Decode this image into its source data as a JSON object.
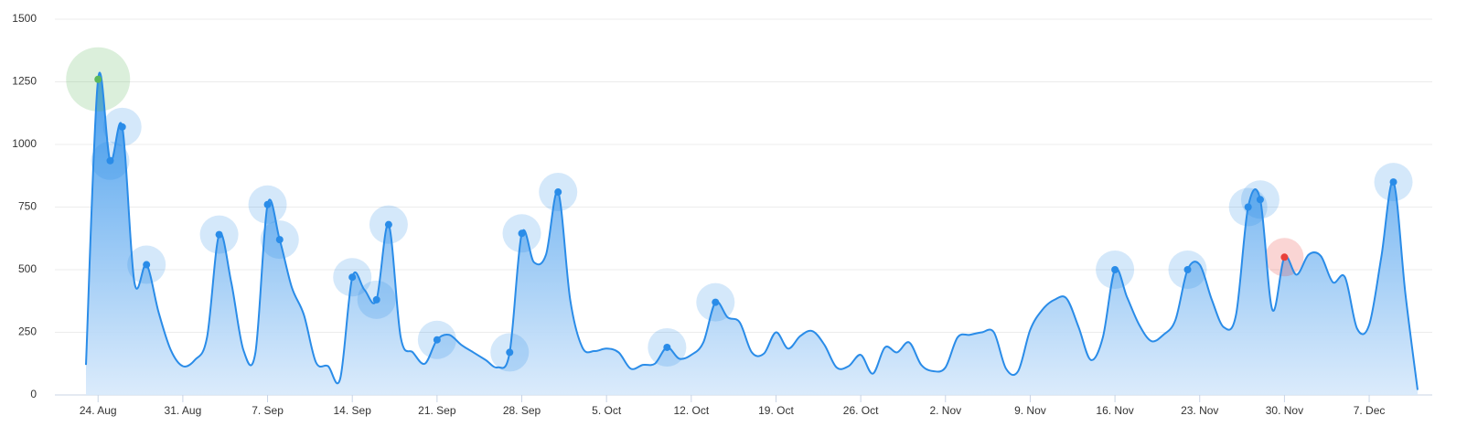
{
  "chart_data": {
    "type": "area",
    "categories": [
      null,
      "24. Aug",
      null,
      null,
      null,
      null,
      null,
      null,
      "31. Aug",
      null,
      null,
      null,
      null,
      null,
      null,
      "7. Sep",
      null,
      null,
      null,
      null,
      null,
      null,
      "14. Sep",
      null,
      null,
      null,
      null,
      null,
      null,
      "21. Sep",
      null,
      null,
      null,
      null,
      null,
      null,
      "28. Sep",
      null,
      null,
      null,
      null,
      null,
      null,
      "5. Oct",
      null,
      null,
      null,
      null,
      null,
      null,
      "12. Oct",
      null,
      null,
      null,
      null,
      null,
      null,
      "19. Oct",
      null,
      null,
      null,
      null,
      null,
      null,
      "26. Oct",
      null,
      null,
      null,
      null,
      null,
      null,
      "2. Nov",
      null,
      null,
      null,
      null,
      null,
      null,
      "9. Nov",
      null,
      null,
      null,
      null,
      null,
      null,
      "16. Nov",
      null,
      null,
      null,
      null,
      null,
      null,
      "23. Nov",
      null,
      null,
      null,
      null,
      null,
      null,
      "30. Nov",
      null,
      null,
      null,
      null,
      null,
      null,
      "7. Dec",
      null,
      null,
      null,
      null
    ],
    "series": [
      {
        "color": "#2a8ce8",
        "values": [
          120,
          1260,
          935,
          1070,
          450,
          520,
          330,
          180,
          115,
          140,
          230,
          640,
          450,
          180,
          170,
          760,
          620,
          430,
          320,
          130,
          115,
          65,
          470,
          420,
          380,
          680,
          230,
          170,
          125,
          220,
          240,
          200,
          170,
          140,
          110,
          170,
          645,
          530,
          560,
          810,
          380,
          190,
          175,
          185,
          170,
          105,
          120,
          125,
          190,
          145,
          160,
          210,
          370,
          310,
          290,
          170,
          165,
          250,
          185,
          235,
          255,
          200,
          110,
          115,
          160,
          85,
          190,
          170,
          210,
          120,
          95,
          110,
          230,
          240,
          250,
          250,
          105,
          95,
          260,
          340,
          380,
          385,
          270,
          140,
          230,
          500,
          390,
          280,
          215,
          240,
          300,
          500,
          520,
          380,
          270,
          320,
          750,
          780,
          340,
          550,
          480,
          560,
          555,
          450,
          470,
          265,
          280,
          550,
          850,
          400,
          20
        ]
      },
      {
        "color": "#2a8ce8",
        "values": [
          null,
          null,
          935,
          1070,
          null,
          520,
          null,
          null,
          null,
          null,
          null,
          640,
          null,
          null,
          null,
          760,
          620,
          null,
          null,
          null,
          null,
          null,
          470,
          null,
          380,
          680,
          null,
          null,
          null,
          220,
          null,
          null,
          null,
          null,
          null,
          170,
          645,
          null,
          null,
          810,
          null,
          null,
          null,
          null,
          null,
          null,
          null,
          null,
          190,
          null,
          null,
          null,
          370,
          null,
          null,
          null,
          null,
          null,
          null,
          null,
          null,
          null,
          null,
          null,
          null,
          null,
          null,
          null,
          null,
          null,
          null,
          null,
          null,
          null,
          null,
          null,
          null,
          null,
          null,
          null,
          null,
          null,
          null,
          null,
          null,
          500,
          null,
          null,
          null,
          null,
          null,
          500,
          null,
          null,
          null,
          null,
          750,
          780,
          null,
          null,
          null,
          null,
          null,
          null,
          null,
          null,
          null,
          null,
          850,
          null,
          null
        ]
      },
      {
        "color": "#5cb85c",
        "values": [
          null,
          1260,
          null,
          null,
          null,
          null,
          null,
          null,
          null,
          null,
          null,
          null,
          null,
          null,
          null,
          null,
          null,
          null,
          null,
          null,
          null,
          null,
          null,
          null,
          null,
          null,
          null,
          null,
          null,
          null,
          null,
          null,
          null,
          null,
          null,
          null,
          null,
          null,
          null,
          null,
          null,
          null,
          null,
          null,
          null,
          null,
          null,
          null,
          null,
          null,
          null,
          null,
          null,
          null,
          null,
          null,
          null,
          null,
          null,
          null,
          null,
          null,
          null,
          null,
          null,
          null,
          null,
          null,
          null,
          null,
          null,
          null,
          null,
          null,
          null,
          null,
          null,
          null,
          null,
          null,
          null,
          null,
          null,
          null,
          null,
          null,
          null,
          null,
          null,
          null,
          null,
          null,
          null,
          null,
          null,
          null,
          null,
          null,
          null,
          null,
          null,
          null,
          null,
          null,
          null,
          null,
          null,
          null,
          null,
          null,
          null
        ]
      },
      {
        "color": "#e8413a",
        "values": [
          null,
          null,
          null,
          null,
          null,
          null,
          null,
          null,
          null,
          null,
          null,
          null,
          null,
          null,
          null,
          null,
          null,
          null,
          null,
          null,
          null,
          null,
          null,
          null,
          null,
          null,
          null,
          null,
          null,
          null,
          null,
          null,
          null,
          null,
          null,
          null,
          null,
          null,
          null,
          null,
          null,
          null,
          null,
          null,
          null,
          null,
          null,
          null,
          null,
          null,
          null,
          null,
          null,
          null,
          null,
          null,
          null,
          null,
          null,
          null,
          null,
          null,
          null,
          null,
          null,
          null,
          null,
          null,
          null,
          null,
          null,
          null,
          null,
          null,
          null,
          null,
          null,
          null,
          null,
          null,
          null,
          null,
          null,
          null,
          null,
          null,
          null,
          null,
          null,
          null,
          null,
          null,
          null,
          null,
          null,
          null,
          null,
          null,
          null,
          550,
          null,
          null,
          null,
          null,
          null,
          null,
          null,
          null,
          null,
          null,
          null
        ]
      }
    ],
    "ylim": [
      0,
      1500
    ],
    "yticks": [
      0,
      250,
      500,
      750,
      1000,
      1250,
      1500
    ],
    "grid": true
  }
}
